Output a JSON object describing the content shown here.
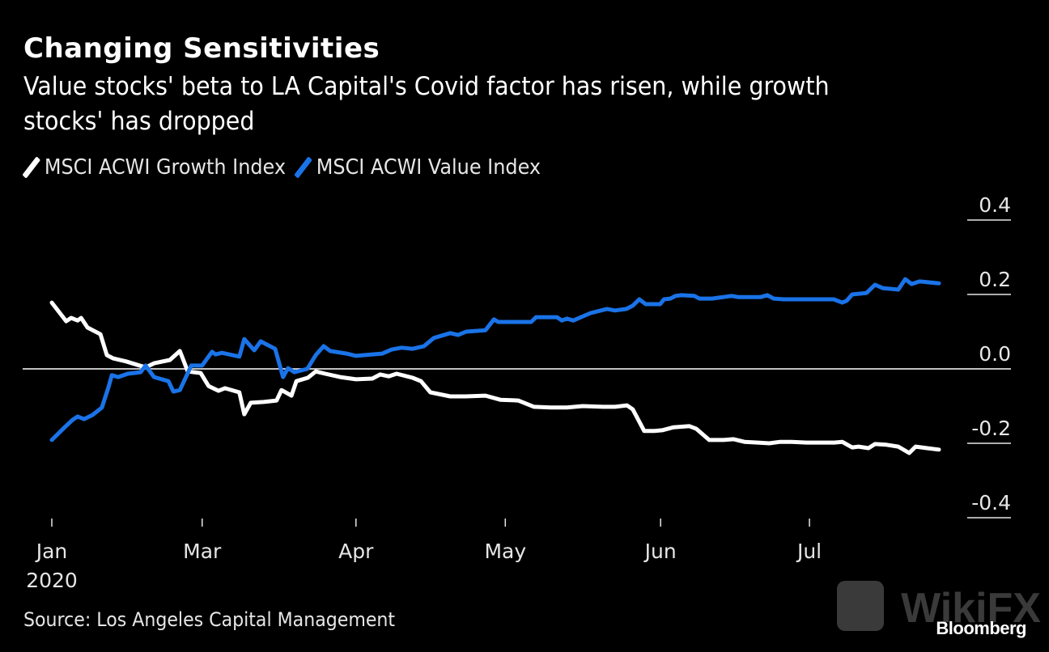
{
  "header": {
    "title": "Changing Sensitivities",
    "subtitle_line1": "Value stocks' beta to LA Capital's Covid factor has risen, while growth",
    "subtitle_line2": "stocks' has dropped"
  },
  "footer": {
    "source": "Source: Los Angeles Capital Management",
    "logo": "Bloomberg",
    "watermark": "WikiFX"
  },
  "colors": {
    "background": "#000000",
    "growth": "#ffffff",
    "value": "#1a73e8",
    "zero_line": "#ffffff",
    "text": "#e6e6e6"
  },
  "chart_data": {
    "type": "line",
    "title": "Changing Sensitivities",
    "subtitle": "Value stocks' beta to LA Capital's Covid factor has risen, while growth stocks' has dropped",
    "xlabel": "",
    "ylabel": "",
    "x_unit": "days since first tick (Jan 2020)",
    "x_range": [
      0,
      179
    ],
    "ylim": [
      -0.4,
      0.4
    ],
    "yticks": [
      0.4,
      0.2,
      0.0,
      -0.2,
      -0.4
    ],
    "ytick_labels": [
      "0.4",
      "0.2",
      "0.0",
      "-0.2",
      "-0.4"
    ],
    "xticks": [
      {
        "day": 0,
        "label": "Jan",
        "sublabel": "2020"
      },
      {
        "day": 30.3,
        "label": "Mar",
        "sublabel": ""
      },
      {
        "day": 61.3,
        "label": "Apr",
        "sublabel": ""
      },
      {
        "day": 91.4,
        "label": "May",
        "sublabel": ""
      },
      {
        "day": 122.7,
        "label": "Jun",
        "sublabel": ""
      },
      {
        "day": 152.7,
        "label": "Jul",
        "sublabel": ""
      }
    ],
    "grid": false,
    "zero_line": true,
    "legend_position": "top-left",
    "series": [
      {
        "name": "MSCI ACWI Growth Index",
        "color": "#ffffff",
        "x": [
          0,
          2.9,
          3.9,
          5.2,
          5.9,
          7.2,
          9.8,
          11.1,
          12.4,
          15.0,
          18.9,
          20.6,
          23.8,
          25.8,
          27.4,
          30.0,
          31.6,
          33.6,
          34.9,
          37.8,
          38.8,
          40.1,
          42.7,
          45.3,
          46.3,
          48.3,
          49.3,
          51.6,
          53.2,
          55.1,
          58.1,
          61.3,
          64.6,
          66.2,
          67.9,
          69.5,
          72.7,
          74.4,
          76.3,
          80.3,
          83.4,
          87.4,
          90.4,
          94.0,
          97.2,
          100.5,
          103.8,
          107.0,
          111.1,
          113.5,
          115.9,
          117.1,
          119.4,
          121.4,
          123.0,
          125.3,
          128.5,
          129.9,
          132.5,
          135.4,
          137.4,
          139.6,
          142.3,
          144.6,
          146.8,
          149.1,
          152.1,
          154.4,
          157.7,
          159.3,
          161.3,
          162.6,
          164.6,
          165.9,
          168.2,
          170.6,
          172.8,
          174.1,
          176.4,
          178.8
        ],
        "y": [
          0.178,
          0.128,
          0.137,
          0.13,
          0.137,
          0.111,
          0.093,
          0.037,
          0.028,
          0.02,
          0.004,
          0.015,
          0.024,
          0.048,
          -0.007,
          -0.011,
          -0.046,
          -0.059,
          -0.052,
          -0.063,
          -0.122,
          -0.091,
          -0.089,
          -0.085,
          -0.057,
          -0.072,
          -0.033,
          -0.024,
          -0.007,
          -0.013,
          -0.022,
          -0.028,
          -0.026,
          -0.015,
          -0.02,
          -0.013,
          -0.024,
          -0.033,
          -0.063,
          -0.074,
          -0.074,
          -0.072,
          -0.083,
          -0.085,
          -0.102,
          -0.104,
          -0.104,
          -0.1,
          -0.102,
          -0.102,
          -0.098,
          -0.109,
          -0.167,
          -0.167,
          -0.165,
          -0.157,
          -0.154,
          -0.161,
          -0.191,
          -0.191,
          -0.189,
          -0.196,
          -0.198,
          -0.2,
          -0.196,
          -0.196,
          -0.198,
          -0.198,
          -0.198,
          -0.196,
          -0.211,
          -0.209,
          -0.213,
          -0.202,
          -0.204,
          -0.209,
          -0.226,
          -0.209,
          -0.213,
          -0.217
        ]
      },
      {
        "name": "MSCI ACWI Value Index",
        "color": "#1a73e8",
        "x": [
          0,
          2.6,
          4.2,
          5.2,
          6.5,
          8.2,
          10.1,
          11.4,
          12.1,
          13.4,
          15.3,
          17.9,
          18.9,
          20.6,
          23.5,
          24.5,
          25.8,
          28.1,
          30.3,
          32.3,
          33.0,
          34.3,
          37.8,
          38.8,
          40.8,
          42.1,
          45.0,
          46.6,
          47.6,
          48.9,
          51.5,
          53.2,
          54.8,
          56.1,
          59.4,
          61.3,
          64.6,
          66.6,
          68.5,
          70.5,
          72.7,
          75.0,
          77.0,
          80.3,
          81.9,
          83.5,
          87.4,
          89.1,
          90.0,
          96.6,
          97.6,
          101.8,
          102.8,
          103.8,
          105.1,
          108.6,
          111.9,
          113.5,
          115.8,
          117.1,
          118.4,
          119.7,
          121.8,
          122.6,
          123.4,
          124.7,
          125.7,
          126.9,
          129.5,
          130.5,
          133.1,
          137.0,
          138.3,
          142.9,
          144.2,
          145.5,
          147.5,
          152.7,
          157.6,
          159.3,
          160.2,
          161.3,
          164.2,
          165.9,
          167.5,
          169.2,
          170.6,
          172.0,
          173.3,
          174.9,
          178.8
        ],
        "y": [
          -0.191,
          -0.157,
          -0.137,
          -0.128,
          -0.135,
          -0.124,
          -0.104,
          -0.05,
          -0.017,
          -0.022,
          -0.013,
          -0.009,
          0.009,
          -0.022,
          -0.033,
          -0.061,
          -0.057,
          0.009,
          0.009,
          0.046,
          0.039,
          0.043,
          0.033,
          0.08,
          0.05,
          0.074,
          0.054,
          -0.022,
          0.002,
          -0.009,
          0.0,
          0.037,
          0.061,
          0.048,
          0.041,
          0.035,
          0.039,
          0.041,
          0.052,
          0.057,
          0.054,
          0.061,
          0.083,
          0.096,
          0.091,
          0.1,
          0.104,
          0.133,
          0.126,
          0.126,
          0.139,
          0.139,
          0.13,
          0.135,
          0.13,
          0.15,
          0.161,
          0.157,
          0.161,
          0.17,
          0.187,
          0.174,
          0.174,
          0.174,
          0.187,
          0.189,
          0.196,
          0.198,
          0.196,
          0.189,
          0.189,
          0.196,
          0.193,
          0.193,
          0.198,
          0.189,
          0.187,
          0.187,
          0.187,
          0.178,
          0.183,
          0.2,
          0.204,
          0.226,
          0.217,
          0.215,
          0.213,
          0.241,
          0.228,
          0.235,
          0.23
        ]
      }
    ]
  }
}
